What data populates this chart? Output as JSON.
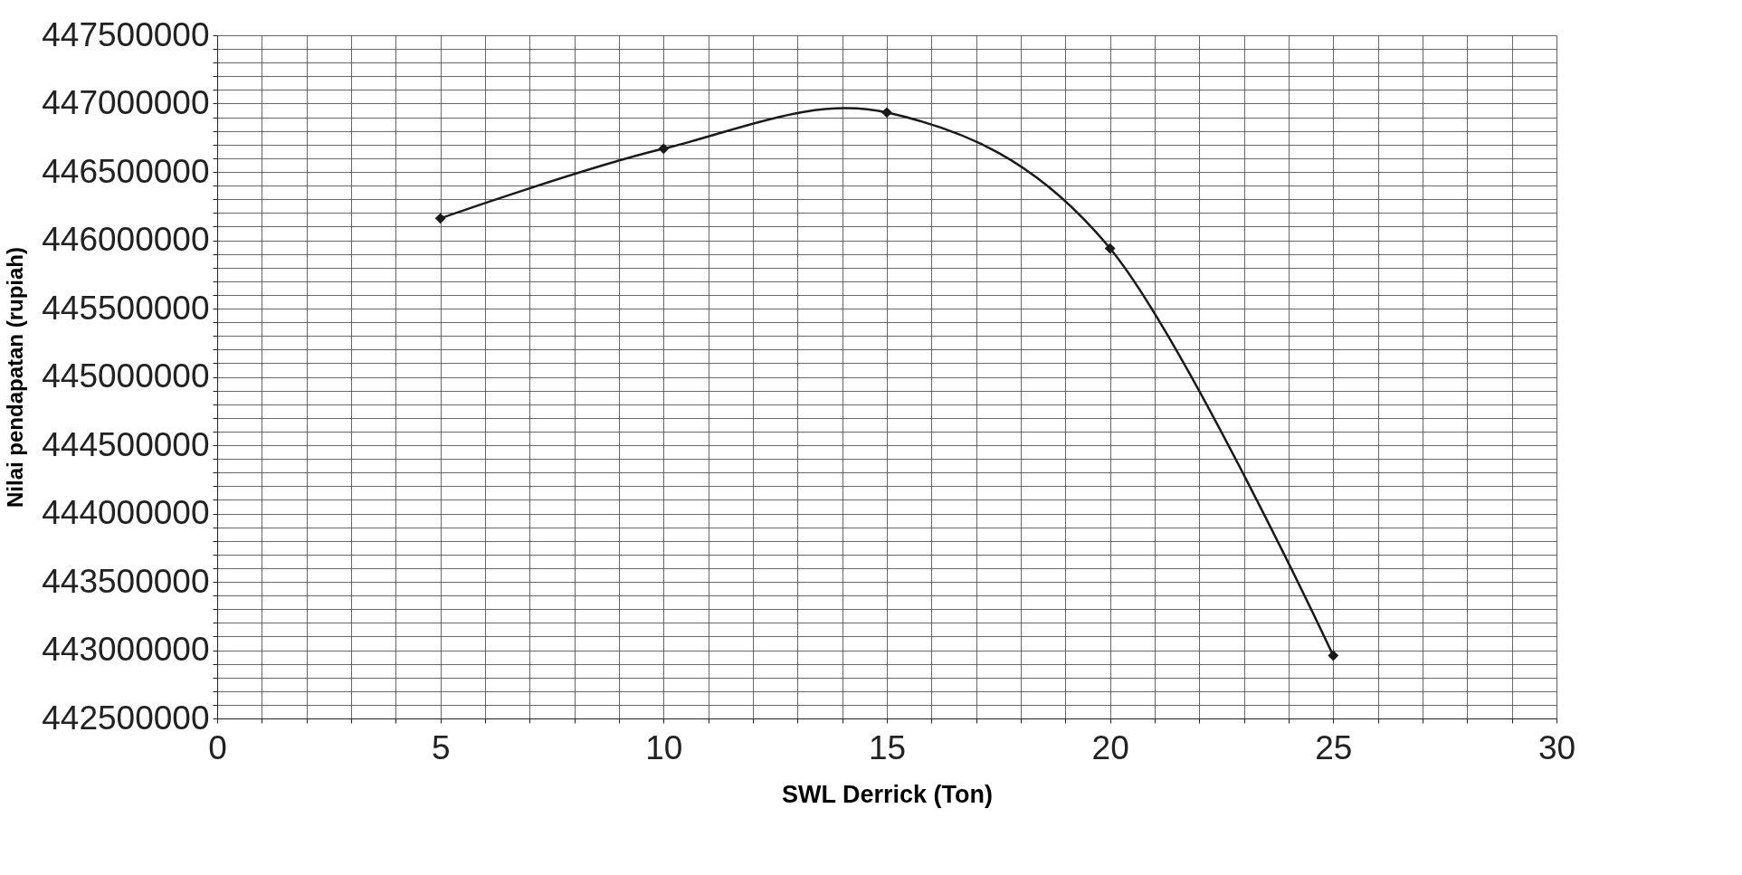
{
  "chart_data": {
    "type": "line",
    "xlabel": "SWL Derrick (Ton)",
    "ylabel": "Nilai pendapatan (rupiah)",
    "x": [
      5,
      10,
      15,
      20,
      25
    ],
    "series": [
      {
        "color": "#1a1a1a",
        "values": [
          446160000,
          446670000,
          446935000,
          445940000,
          442960000
        ]
      }
    ],
    "marker": "diamond",
    "line_style": "solid",
    "grid": true,
    "xlim": [
      0,
      30
    ],
    "ylim": [
      442500000,
      447500000
    ],
    "xticks": [
      0,
      {
        "value": 1,
        "label": null
      },
      {
        "value": 2,
        "label": null
      },
      {
        "value": 3,
        "label": null
      },
      {
        "value": 4,
        "label": null
      },
      5,
      {
        "value": 6,
        "label": null
      },
      {
        "value": 7,
        "label": null
      },
      {
        "value": 8,
        "label": null
      },
      {
        "value": 9,
        "label": null
      },
      10,
      {
        "value": 11,
        "label": null
      },
      {
        "value": 12,
        "label": null
      },
      {
        "value": 13,
        "label": null
      },
      {
        "value": 14,
        "label": null
      },
      15,
      {
        "value": 16,
        "label": null
      },
      {
        "value": 17,
        "label": null
      },
      {
        "value": 18,
        "label": null
      },
      {
        "value": 19,
        "label": null
      },
      20,
      {
        "value": 21,
        "label": null
      },
      {
        "value": 22,
        "label": null
      },
      {
        "value": 23,
        "label": null
      },
      {
        "value": 24,
        "label": null
      },
      25,
      {
        "value": 26,
        "label": null
      },
      {
        "value": 27,
        "label": null
      },
      {
        "value": 28,
        "label": null
      },
      {
        "value": 29,
        "label": null
      },
      30
    ],
    "yticks": [
      442500000,
      {
        "value": 442600000,
        "label": null
      },
      {
        "value": 442700000,
        "label": null
      },
      {
        "value": 442800000,
        "label": null
      },
      {
        "value": 442900000,
        "label": null
      },
      443000000,
      {
        "value": 443100000,
        "label": null
      },
      {
        "value": 443200000,
        "label": null
      },
      {
        "value": 443300000,
        "label": null
      },
      {
        "value": 443400000,
        "label": null
      },
      443500000,
      {
        "value": 443600000,
        "label": null
      },
      {
        "value": 443700000,
        "label": null
      },
      {
        "value": 443800000,
        "label": null
      },
      {
        "value": 443900000,
        "label": null
      },
      444000000,
      {
        "value": 444100000,
        "label": null
      },
      {
        "value": 444200000,
        "label": null
      },
      {
        "value": 444300000,
        "label": null
      },
      {
        "value": 444400000,
        "label": null
      },
      444500000,
      {
        "value": 444600000,
        "label": null
      },
      {
        "value": 444700000,
        "label": null
      },
      {
        "value": 444800000,
        "label": null
      },
      {
        "value": 444900000,
        "label": null
      },
      445000000,
      {
        "value": 445100000,
        "label": null
      },
      {
        "value": 445200000,
        "label": null
      },
      {
        "value": 445300000,
        "label": null
      },
      {
        "value": 445400000,
        "label": null
      },
      445500000,
      {
        "value": 445600000,
        "label": null
      },
      {
        "value": 445700000,
        "label": null
      },
      {
        "value": 445800000,
        "label": null
      },
      {
        "value": 445900000,
        "label": null
      },
      446000000,
      {
        "value": 446100000,
        "label": null
      },
      {
        "value": 446200000,
        "label": null
      },
      {
        "value": 446300000,
        "label": null
      },
      {
        "value": 446400000,
        "label": null
      },
      446500000,
      {
        "value": 446600000,
        "label": null
      },
      {
        "value": 446700000,
        "label": null
      },
      {
        "value": 446800000,
        "label": null
      },
      {
        "value": 446900000,
        "label": null
      },
      447000000,
      {
        "value": 447100000,
        "label": null
      },
      {
        "value": 447200000,
        "label": null
      },
      {
        "value": 447300000,
        "label": null
      },
      {
        "value": 447400000,
        "label": null
      },
      447500000
    ]
  }
}
